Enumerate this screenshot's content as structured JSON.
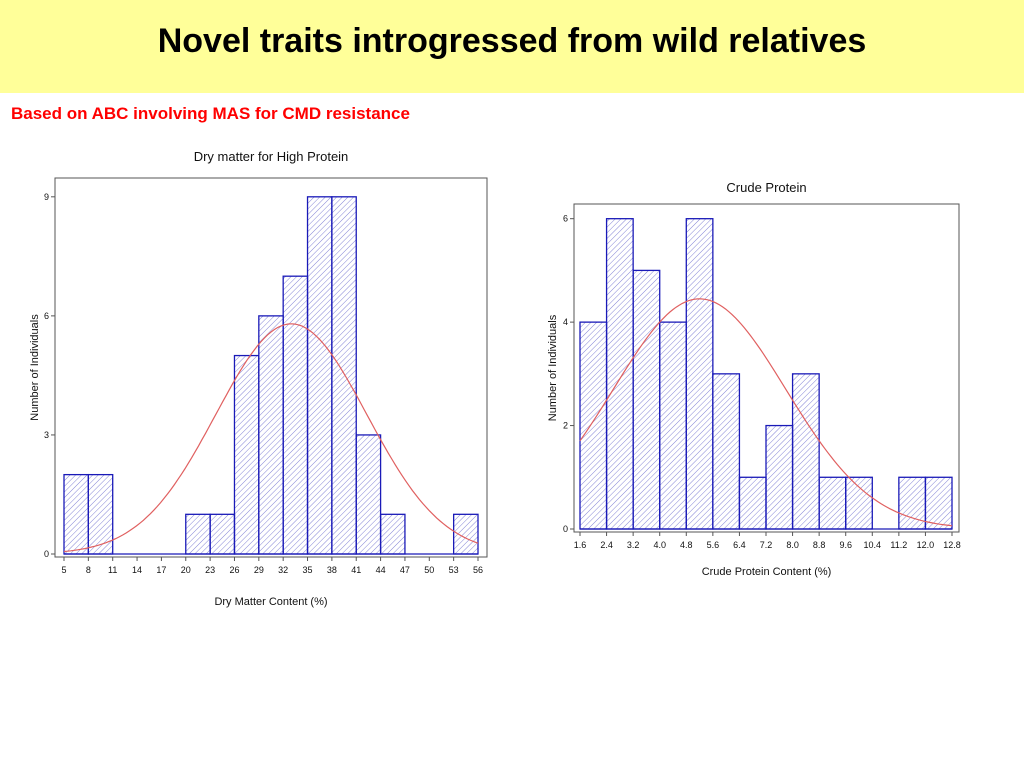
{
  "slide": {
    "title": "Novel traits introgressed from wild relatives",
    "subtitle": "Based on ABC involving MAS for CMD resistance"
  },
  "colors": {
    "bar_stroke": "#1a1ab8",
    "hatch": "#6666cc",
    "curve": "#e06060",
    "title_band": "#ffff99",
    "subtitle": "#ff0000"
  },
  "chart_data": [
    {
      "type": "bar",
      "title": "Dry matter for High Protein",
      "xlabel": "Dry Matter Content (%)",
      "ylabel": "Number of Individuals",
      "x_ticks": [
        "5",
        "8",
        "11",
        "14",
        "17",
        "20",
        "23",
        "26",
        "29",
        "32",
        "35",
        "38",
        "41",
        "44",
        "47",
        "50",
        "53",
        "56"
      ],
      "bin_width": 3,
      "bins": [
        {
          "start": 5,
          "count": 2
        },
        {
          "start": 8,
          "count": 2
        },
        {
          "start": 20,
          "count": 1
        },
        {
          "start": 23,
          "count": 1
        },
        {
          "start": 26,
          "count": 5
        },
        {
          "start": 29,
          "count": 6
        },
        {
          "start": 32,
          "count": 7
        },
        {
          "start": 35,
          "count": 9
        },
        {
          "start": 38,
          "count": 9
        },
        {
          "start": 41,
          "count": 3
        },
        {
          "start": 44,
          "count": 1
        },
        {
          "start": 53,
          "count": 1
        }
      ],
      "y_ticks": [
        "0",
        "3",
        "6",
        "9"
      ],
      "xlim": [
        5,
        56
      ],
      "ylim": [
        0,
        9.6
      ],
      "normal_fit": {
        "mean": 33,
        "sd": 9.3,
        "peak": 5.8
      }
    },
    {
      "type": "bar",
      "title": "Crude Protein",
      "xlabel": "Crude Protein Content (%)",
      "ylabel": "Number of Individuals",
      "x_ticks": [
        "1.6",
        "2.4",
        "3.2",
        "4.0",
        "4.8",
        "5.6",
        "6.4",
        "7.2",
        "8.0",
        "8.8",
        "9.6",
        "10.4",
        "11.2",
        "12.0",
        "12.8"
      ],
      "bin_width": 0.8,
      "bins": [
        {
          "start": 1.6,
          "count": 4
        },
        {
          "start": 2.4,
          "count": 6
        },
        {
          "start": 3.2,
          "count": 5
        },
        {
          "start": 4.0,
          "count": 4
        },
        {
          "start": 4.8,
          "count": 6
        },
        {
          "start": 5.6,
          "count": 3
        },
        {
          "start": 6.4,
          "count": 1
        },
        {
          "start": 7.2,
          "count": 2
        },
        {
          "start": 8.0,
          "count": 3
        },
        {
          "start": 8.8,
          "count": 1
        },
        {
          "start": 9.6,
          "count": 1
        },
        {
          "start": 11.2,
          "count": 1
        },
        {
          "start": 12.0,
          "count": 1
        }
      ],
      "y_ticks": [
        "0",
        "2",
        "4",
        "6"
      ],
      "xlim": [
        1.6,
        12.8
      ],
      "ylim": [
        0,
        6.4
      ],
      "normal_fit": {
        "mean": 5.2,
        "sd": 2.6,
        "peak": 4.45
      }
    }
  ]
}
